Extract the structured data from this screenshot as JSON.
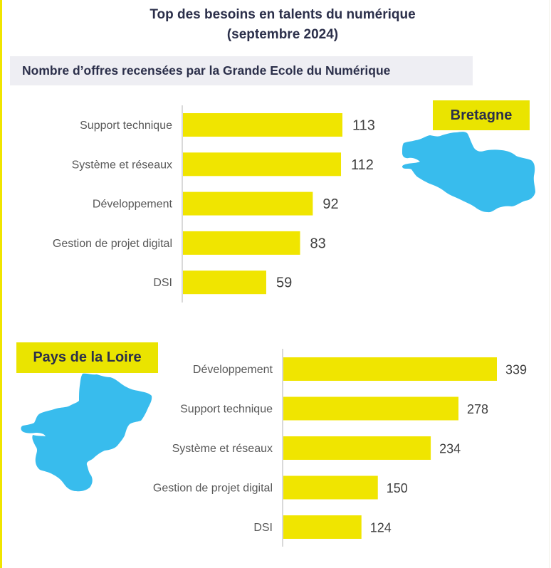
{
  "header": {
    "title_line1": "Top des besoins en talents du numérique",
    "title_line2": "(septembre 2024)",
    "subtitle": "Nombre d’offres recensées par la Grande Ecole du Numérique"
  },
  "colors": {
    "bar": "#f0e500",
    "tag": "#eae400",
    "map": "#38bced",
    "title": "#2b2f4a",
    "label": "#595959",
    "value": "#404040",
    "axis": "#d9d9d9"
  },
  "regions": {
    "bretagne": {
      "name": "Bretagne",
      "icon": "bretagne-map-icon"
    },
    "pays_de_la_loire": {
      "name": "Pays de la Loire",
      "icon": "pays-de-la-loire-map-icon"
    }
  },
  "chart_data": [
    {
      "type": "bar",
      "orientation": "horizontal",
      "title": "Bretagne",
      "categories": [
        "Support technique",
        "Système et réseaux",
        "Développement",
        "Gestion de projet digital",
        "DSI"
      ],
      "values": [
        113,
        112,
        92,
        83,
        59
      ],
      "value_labels": [
        "113",
        "112",
        "92",
        "83",
        "59"
      ],
      "xlabel": "",
      "ylabel": "",
      "xlim": [
        0,
        113
      ],
      "grid": false,
      "legend": "none"
    },
    {
      "type": "bar",
      "orientation": "horizontal",
      "title": "Pays de la Loire",
      "categories": [
        "Développement",
        "Support technique",
        "Système et réseaux",
        "Gestion de projet digital",
        "DSI"
      ],
      "values": [
        339,
        278,
        234,
        150,
        124
      ],
      "value_labels": [
        "339",
        "278",
        "234",
        "150",
        "124"
      ],
      "xlabel": "",
      "ylabel": "",
      "xlim": [
        0,
        339
      ],
      "grid": false,
      "legend": "none"
    }
  ]
}
